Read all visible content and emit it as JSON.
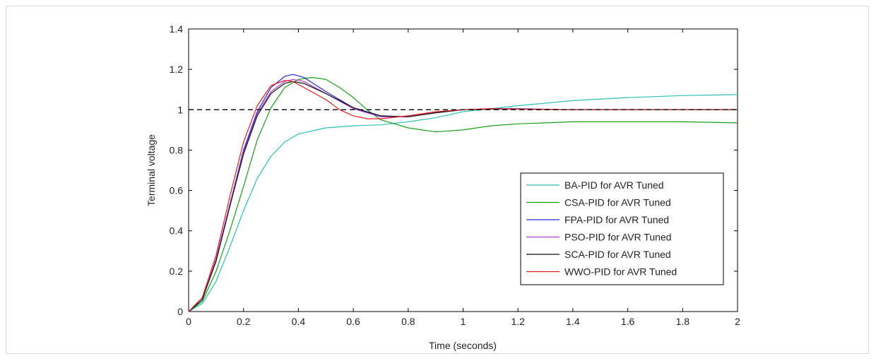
{
  "chart_data": {
    "type": "line",
    "title": "",
    "xlabel": "Time (seconds)",
    "ylabel": "Terminal voltage",
    "xlim": [
      0,
      2
    ],
    "ylim": [
      0,
      1.4
    ],
    "xticks": [
      "0",
      "0.2",
      "0.4",
      "0.6",
      "0.8",
      "1",
      "1.2",
      "1.4",
      "1.6",
      "1.8",
      "2"
    ],
    "yticks": [
      "0",
      "0.2",
      "0.4",
      "0.6",
      "0.8",
      "1",
      "1.2",
      "1.4"
    ],
    "grid": false,
    "legend_position": "lower-right",
    "reference_line": {
      "y": 1.0,
      "style": "dashed",
      "color": "#000000"
    },
    "series": [
      {
        "name": "BA-PID for AVR Tuned",
        "color": "#2bbfb6",
        "x": [
          0,
          0.05,
          0.1,
          0.15,
          0.2,
          0.25,
          0.3,
          0.35,
          0.4,
          0.5,
          0.6,
          0.7,
          0.8,
          0.9,
          1.0,
          1.2,
          1.4,
          1.6,
          1.8,
          2.0
        ],
        "y": [
          0,
          0.04,
          0.15,
          0.32,
          0.5,
          0.66,
          0.77,
          0.84,
          0.88,
          0.91,
          0.92,
          0.925,
          0.94,
          0.96,
          0.99,
          1.02,
          1.045,
          1.06,
          1.07,
          1.075
        ]
      },
      {
        "name": "CSA-PID for AVR Tuned",
        "color": "#1a9e1a",
        "x": [
          0,
          0.05,
          0.1,
          0.15,
          0.2,
          0.25,
          0.3,
          0.35,
          0.4,
          0.45,
          0.5,
          0.55,
          0.6,
          0.65,
          0.7,
          0.8,
          0.9,
          1.0,
          1.1,
          1.2,
          1.4,
          1.6,
          1.8,
          2.0
        ],
        "y": [
          0,
          0.05,
          0.2,
          0.4,
          0.62,
          0.85,
          1.01,
          1.11,
          1.15,
          1.16,
          1.15,
          1.11,
          1.06,
          1.0,
          0.95,
          0.91,
          0.89,
          0.9,
          0.92,
          0.93,
          0.94,
          0.94,
          0.94,
          0.935
        ]
      },
      {
        "name": "FPA-PID for AVR Tuned",
        "color": "#2626d9",
        "x": [
          0,
          0.05,
          0.1,
          0.15,
          0.2,
          0.25,
          0.3,
          0.35,
          0.38,
          0.42,
          0.5,
          0.6,
          0.7,
          0.8,
          0.9,
          1.0,
          1.1,
          1.2,
          1.4,
          2.0
        ],
        "y": [
          0,
          0.06,
          0.26,
          0.53,
          0.8,
          0.99,
          1.11,
          1.165,
          1.175,
          1.16,
          1.09,
          1.01,
          0.965,
          0.965,
          0.985,
          1.0,
          1.005,
          1.005,
          1.0,
          1.0
        ]
      },
      {
        "name": "PSO-PID for AVR Tuned",
        "color": "#b23ad1",
        "x": [
          0,
          0.05,
          0.1,
          0.15,
          0.2,
          0.25,
          0.3,
          0.35,
          0.38,
          0.42,
          0.5,
          0.6,
          0.7,
          0.8,
          0.9,
          1.0,
          1.1,
          1.2,
          1.4,
          2.0
        ],
        "y": [
          0,
          0.06,
          0.26,
          0.53,
          0.79,
          0.98,
          1.09,
          1.14,
          1.15,
          1.14,
          1.08,
          1.005,
          0.965,
          0.965,
          0.985,
          1.0,
          1.005,
          1.003,
          1.0,
          1.0
        ]
      },
      {
        "name": "SCA-PID for AVR Tuned",
        "color": "#111111",
        "x": [
          0,
          0.05,
          0.1,
          0.15,
          0.2,
          0.25,
          0.3,
          0.35,
          0.38,
          0.42,
          0.5,
          0.6,
          0.7,
          0.8,
          0.9,
          1.0,
          1.1,
          1.2,
          1.4,
          2.0
        ],
        "y": [
          0,
          0.06,
          0.25,
          0.52,
          0.78,
          0.97,
          1.08,
          1.13,
          1.14,
          1.13,
          1.08,
          1.01,
          0.97,
          0.965,
          0.985,
          1.0,
          1.003,
          1.003,
          1.0,
          1.0
        ]
      },
      {
        "name": "WWO-PID for AVR Tuned",
        "color": "#e01e1e",
        "x": [
          0,
          0.05,
          0.1,
          0.15,
          0.2,
          0.25,
          0.3,
          0.35,
          0.38,
          0.42,
          0.5,
          0.55,
          0.6,
          0.65,
          0.7,
          0.8,
          0.9,
          1.0,
          1.1,
          1.2,
          1.4,
          2.0
        ],
        "y": [
          0,
          0.07,
          0.28,
          0.57,
          0.84,
          1.02,
          1.12,
          1.145,
          1.14,
          1.11,
          1.05,
          1.0,
          0.97,
          0.955,
          0.955,
          0.97,
          0.99,
          1.0,
          1.005,
          1.003,
          1.0,
          1.0
        ]
      }
    ]
  }
}
